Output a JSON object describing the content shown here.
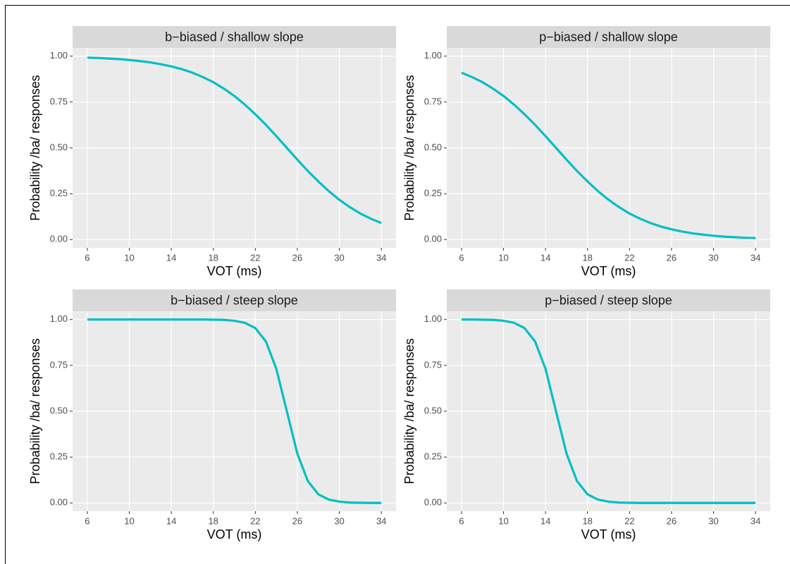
{
  "chart_data": [
    {
      "type": "line",
      "title": "b−biased / shallow slope",
      "x_label": "VOT (ms)",
      "y_label": "Probability /ba/ responses",
      "x": [
        6,
        7,
        8,
        9,
        10,
        11,
        12,
        13,
        14,
        15,
        16,
        17,
        18,
        19,
        20,
        21,
        22,
        23,
        24,
        25,
        26,
        27,
        28,
        29,
        30,
        31,
        32,
        33,
        34
      ],
      "series": [
        {
          "name": "b-biased shallow",
          "color": "#00BFC4",
          "values": [
            0.992,
            0.99,
            0.987,
            0.984,
            0.979,
            0.973,
            0.966,
            0.956,
            0.944,
            0.929,
            0.91,
            0.886,
            0.858,
            0.823,
            0.783,
            0.736,
            0.683,
            0.626,
            0.564,
            0.5,
            0.436,
            0.374,
            0.317,
            0.264,
            0.217,
            0.177,
            0.142,
            0.114,
            0.09
          ]
        }
      ],
      "xlim": [
        4.6,
        35.4
      ],
      "ylim": [
        -0.045,
        1.045
      ],
      "xticks": [
        6,
        10,
        14,
        18,
        22,
        26,
        30,
        34
      ],
      "yticks": [
        {
          "value": 0,
          "label": "0.00"
        },
        {
          "value": 0.25,
          "label": "0.25"
        },
        {
          "value": 0.5,
          "label": "0.50"
        },
        {
          "value": 0.75,
          "label": "0.75"
        },
        {
          "value": 1,
          "label": "1.00"
        }
      ],
      "grid": true
    },
    {
      "type": "line",
      "title": "p−biased / shallow slope",
      "x_label": "VOT (ms)",
      "y_label": "Probability /ba/ responses",
      "x": [
        6,
        7,
        8,
        9,
        10,
        11,
        12,
        13,
        14,
        15,
        16,
        17,
        18,
        19,
        20,
        21,
        22,
        23,
        24,
        25,
        26,
        27,
        28,
        29,
        30,
        31,
        32,
        33,
        34
      ],
      "series": [
        {
          "name": "p-biased shallow",
          "color": "#00BFC4",
          "values": [
            0.91,
            0.886,
            0.858,
            0.823,
            0.783,
            0.736,
            0.683,
            0.626,
            0.564,
            0.5,
            0.436,
            0.374,
            0.317,
            0.264,
            0.217,
            0.177,
            0.142,
            0.114,
            0.09,
            0.071,
            0.056,
            0.044,
            0.034,
            0.027,
            0.021,
            0.016,
            0.013,
            0.01,
            0.008
          ]
        }
      ],
      "xlim": [
        4.6,
        35.4
      ],
      "ylim": [
        -0.045,
        1.045
      ],
      "xticks": [
        6,
        10,
        14,
        18,
        22,
        26,
        30,
        34
      ],
      "yticks": [
        {
          "value": 0,
          "label": "0.00"
        },
        {
          "value": 0.25,
          "label": "0.25"
        },
        {
          "value": 0.5,
          "label": "0.50"
        },
        {
          "value": 0.75,
          "label": "0.75"
        },
        {
          "value": 1,
          "label": "1.00"
        }
      ],
      "grid": true
    },
    {
      "type": "line",
      "title": "b−biased / steep slope",
      "x_label": "VOT (ms)",
      "y_label": "Probability /ba/ responses",
      "x": [
        6,
        7,
        8,
        9,
        10,
        11,
        12,
        13,
        14,
        15,
        16,
        17,
        18,
        19,
        20,
        21,
        22,
        23,
        24,
        25,
        26,
        27,
        28,
        29,
        30,
        31,
        32,
        33,
        34
      ],
      "series": [
        {
          "name": "b-biased steep",
          "color": "#00BFC4",
          "values": [
            1,
            1,
            1,
            1,
            1,
            1,
            1,
            1,
            1,
            1,
            1,
            1,
            0.999,
            0.998,
            0.993,
            0.982,
            0.953,
            0.881,
            0.731,
            0.5,
            0.269,
            0.119,
            0.047,
            0.018,
            0.007,
            0.002,
            0.001,
            0,
            0
          ]
        }
      ],
      "xlim": [
        4.6,
        35.4
      ],
      "ylim": [
        -0.045,
        1.045
      ],
      "xticks": [
        6,
        10,
        14,
        18,
        22,
        26,
        30,
        34
      ],
      "yticks": [
        {
          "value": 0,
          "label": "0.00"
        },
        {
          "value": 0.25,
          "label": "0.25"
        },
        {
          "value": 0.5,
          "label": "0.50"
        },
        {
          "value": 0.75,
          "label": "0.75"
        },
        {
          "value": 1,
          "label": "1.00"
        }
      ],
      "grid": true
    },
    {
      "type": "line",
      "title": "p−biased / steep slope",
      "x_label": "VOT (ms)",
      "y_label": "Probability /ba/ responses",
      "x": [
        6,
        7,
        8,
        9,
        10,
        11,
        12,
        13,
        14,
        15,
        16,
        17,
        18,
        19,
        20,
        21,
        22,
        23,
        24,
        25,
        26,
        27,
        28,
        29,
        30,
        31,
        32,
        33,
        34
      ],
      "series": [
        {
          "name": "p-biased steep",
          "color": "#00BFC4",
          "values": [
            1,
            1,
            0.999,
            0.998,
            0.993,
            0.982,
            0.953,
            0.881,
            0.731,
            0.5,
            0.269,
            0.119,
            0.047,
            0.018,
            0.007,
            0.002,
            0.001,
            0,
            0,
            0,
            0,
            0,
            0,
            0,
            0,
            0,
            0,
            0,
            0
          ]
        }
      ],
      "xlim": [
        4.6,
        35.4
      ],
      "ylim": [
        -0.045,
        1.045
      ],
      "xticks": [
        6,
        10,
        14,
        18,
        22,
        26,
        30,
        34
      ],
      "yticks": [
        {
          "value": 0,
          "label": "0.00"
        },
        {
          "value": 0.25,
          "label": "0.25"
        },
        {
          "value": 0.5,
          "label": "0.50"
        },
        {
          "value": 0.75,
          "label": "0.75"
        },
        {
          "value": 1,
          "label": "1.00"
        }
      ],
      "grid": true
    }
  ]
}
